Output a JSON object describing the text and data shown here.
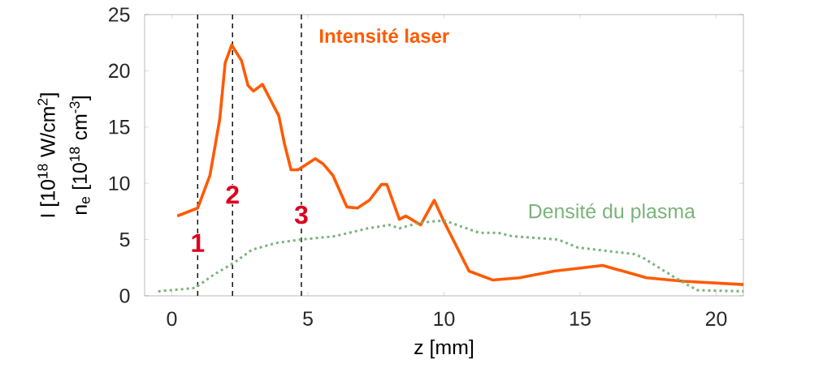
{
  "chart_data": {
    "type": "line",
    "xlabel": "z [mm]",
    "ylabel": [
      "I [10$^{18}$ W/cm$^{2}$]",
      "n$_{e}$ [10$^{18}$ cm$^{-3}$]"
    ],
    "xlim": [
      -1,
      21
    ],
    "xticks": [
      0,
      5,
      10,
      15,
      20
    ],
    "ylim": [
      0,
      25
    ],
    "yticks": [
      0,
      5,
      10,
      15,
      20,
      25
    ],
    "grid": false,
    "marker": "none",
    "series": [
      {
        "name": "Intensité laser",
        "color": "#ff5a00",
        "line_style": "solid",
        "x": [
          0.2,
          0.95,
          1.4,
          1.76,
          1.96,
          2.2,
          2.56,
          2.8,
          3.0,
          3.33,
          3.63,
          3.93,
          4.14,
          4.38,
          4.64,
          5.27,
          5.57,
          5.92,
          6.43,
          6.82,
          7.26,
          7.7,
          7.9,
          8.36,
          8.6,
          9.14,
          9.64,
          10.0,
          10.92,
          11.8,
          12.77,
          14.05,
          15.83,
          17.44,
          18.8,
          21
        ],
        "values": [
          7.1,
          7.8,
          10.7,
          15.7,
          20.7,
          22.3,
          20.9,
          18.7,
          18.2,
          18.8,
          17.4,
          16.0,
          13.5,
          11.2,
          11.2,
          12.2,
          11.7,
          10.7,
          7.9,
          7.8,
          8.5,
          9.9,
          9.9,
          6.8,
          7.1,
          6.3,
          8.5,
          6.6,
          2.2,
          1.4,
          1.6,
          2.2,
          2.7,
          1.6,
          1.3,
          1.0
        ]
      },
      {
        "name": "Densité du plasma",
        "color": "#7ab37a",
        "line_style": "dotted",
        "x": [
          -0.5,
          0.86,
          1.55,
          2.26,
          2.95,
          3.84,
          4.73,
          6.0,
          7.2,
          8.0,
          8.36,
          9.1,
          10.0,
          11.3,
          12.0,
          12.5,
          14.2,
          14.9,
          17.0,
          17.3,
          18.5,
          19.3,
          21
        ],
        "values": [
          0.4,
          0.7,
          1.9,
          2.9,
          4.1,
          4.7,
          5.0,
          5.3,
          6.0,
          6.3,
          6.0,
          6.5,
          6.7,
          5.6,
          5.6,
          5.3,
          5.0,
          4.3,
          3.7,
          3.4,
          1.6,
          0.5,
          0.4
        ]
      }
    ],
    "ref_lines": [
      {
        "axis": "x",
        "value": 0.95,
        "color": "#000000",
        "line_style": "dashed"
      },
      {
        "axis": "x",
        "value": 2.23,
        "color": "#000000",
        "line_style": "dashed"
      },
      {
        "axis": "x",
        "value": 4.76,
        "color": "#000000",
        "line_style": "dashed"
      }
    ],
    "annotations": [
      {
        "text": "1",
        "x": 0.95,
        "y": 4.7
      },
      {
        "text": "2",
        "x": 2.23,
        "y": 9.0
      },
      {
        "text": "3",
        "x": 4.76,
        "y": 7.2
      }
    ]
  }
}
